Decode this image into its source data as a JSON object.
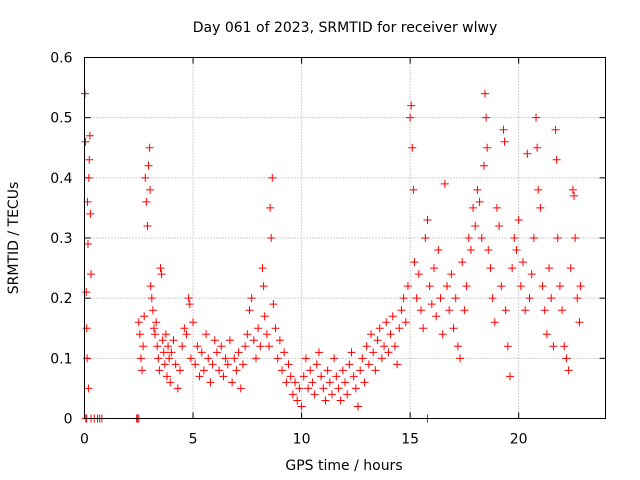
{
  "chart_data": {
    "type": "scatter",
    "title": "Day 061 of 2023, SRMTID for receiver wlwy",
    "xlabel": "GPS time / hours",
    "ylabel": "SRMTID / TECUs",
    "xlim": [
      0,
      24
    ],
    "ylim": [
      0,
      0.6
    ],
    "xticks": [
      0,
      5,
      10,
      15,
      20
    ],
    "xtick_labels": [
      "0",
      "5",
      "10",
      "15",
      "20"
    ],
    "yticks": [
      0,
      0.1,
      0.2,
      0.3,
      0.4,
      0.5,
      0.6
    ],
    "ytick_labels": [
      "0",
      "0.1",
      "0.2",
      "0.3",
      "0.4",
      "0.5",
      "0.6"
    ],
    "grid": true,
    "marker": "+",
    "series": [
      {
        "name": "SRMTID",
        "color": "#ff0000",
        "points": [
          [
            0.02,
            0.54
          ],
          [
            0.05,
            0.46
          ],
          [
            0.08,
            0.21
          ],
          [
            0.1,
            0.15
          ],
          [
            0.12,
            0.1
          ],
          [
            0.14,
            0.36
          ],
          [
            0.16,
            0.29
          ],
          [
            0.18,
            0.05
          ],
          [
            0.2,
            0.4
          ],
          [
            0.22,
            0.43
          ],
          [
            0.25,
            0.47
          ],
          [
            0.27,
            0.34
          ],
          [
            0.3,
            0.24
          ],
          [
            0.06,
            0.0
          ],
          [
            0.1,
            0.0
          ],
          [
            0.3,
            0.0
          ],
          [
            0.45,
            0.0
          ],
          [
            0.6,
            0.0
          ],
          [
            0.7,
            0.0
          ],
          [
            0.8,
            0.0
          ],
          [
            2.4,
            0.0
          ],
          [
            2.45,
            0.0
          ],
          [
            2.5,
            0.0
          ],
          [
            15.8,
            0.0
          ],
          [
            2.5,
            0.16
          ],
          [
            2.55,
            0.14
          ],
          [
            2.6,
            0.1
          ],
          [
            2.65,
            0.08
          ],
          [
            2.7,
            0.12
          ],
          [
            2.75,
            0.17
          ],
          [
            2.8,
            0.4
          ],
          [
            2.85,
            0.36
          ],
          [
            2.9,
            0.32
          ],
          [
            2.95,
            0.42
          ],
          [
            3.0,
            0.45
          ],
          [
            3.02,
            0.38
          ],
          [
            3.05,
            0.22
          ],
          [
            3.1,
            0.2
          ],
          [
            3.15,
            0.18
          ],
          [
            3.2,
            0.15
          ],
          [
            3.25,
            0.14
          ],
          [
            3.3,
            0.16
          ],
          [
            3.35,
            0.12
          ],
          [
            3.4,
            0.1
          ],
          [
            3.45,
            0.08
          ],
          [
            3.5,
            0.25
          ],
          [
            3.55,
            0.24
          ],
          [
            3.6,
            0.13
          ],
          [
            3.65,
            0.11
          ],
          [
            3.7,
            0.09
          ],
          [
            3.75,
            0.14
          ],
          [
            3.8,
            0.07
          ],
          [
            3.85,
            0.12
          ],
          [
            3.9,
            0.1
          ],
          [
            3.95,
            0.06
          ],
          [
            4.0,
            0.11
          ],
          [
            4.1,
            0.13
          ],
          [
            4.2,
            0.09
          ],
          [
            4.3,
            0.05
          ],
          [
            4.4,
            0.08
          ],
          [
            4.5,
            0.12
          ],
          [
            4.6,
            0.15
          ],
          [
            4.7,
            0.14
          ],
          [
            4.8,
            0.2
          ],
          [
            4.85,
            0.19
          ],
          [
            4.9,
            0.1
          ],
          [
            5.0,
            0.16
          ],
          [
            5.1,
            0.09
          ],
          [
            5.2,
            0.12
          ],
          [
            5.3,
            0.07
          ],
          [
            5.4,
            0.11
          ],
          [
            5.5,
            0.08
          ],
          [
            5.6,
            0.14
          ],
          [
            5.7,
            0.1
          ],
          [
            5.8,
            0.06
          ],
          [
            5.9,
            0.09
          ],
          [
            6.0,
            0.13
          ],
          [
            6.1,
            0.11
          ],
          [
            6.2,
            0.08
          ],
          [
            6.3,
            0.12
          ],
          [
            6.4,
            0.07
          ],
          [
            6.5,
            0.1
          ],
          [
            6.6,
            0.09
          ],
          [
            6.7,
            0.13
          ],
          [
            6.8,
            0.06
          ],
          [
            6.9,
            0.1
          ],
          [
            7.0,
            0.08
          ],
          [
            7.1,
            0.11
          ],
          [
            7.2,
            0.05
          ],
          [
            7.3,
            0.09
          ],
          [
            7.4,
            0.12
          ],
          [
            7.5,
            0.14
          ],
          [
            7.6,
            0.18
          ],
          [
            7.7,
            0.2
          ],
          [
            7.8,
            0.13
          ],
          [
            7.9,
            0.1
          ],
          [
            8.0,
            0.15
          ],
          [
            8.1,
            0.12
          ],
          [
            8.2,
            0.25
          ],
          [
            8.25,
            0.22
          ],
          [
            8.3,
            0.17
          ],
          [
            8.4,
            0.14
          ],
          [
            8.5,
            0.12
          ],
          [
            8.55,
            0.35
          ],
          [
            8.6,
            0.3
          ],
          [
            8.65,
            0.4
          ],
          [
            8.7,
            0.19
          ],
          [
            8.8,
            0.15
          ],
          [
            8.9,
            0.1
          ],
          [
            9.0,
            0.13
          ],
          [
            9.1,
            0.08
          ],
          [
            9.2,
            0.11
          ],
          [
            9.3,
            0.06
          ],
          [
            9.4,
            0.09
          ],
          [
            9.5,
            0.07
          ],
          [
            9.6,
            0.04
          ],
          [
            9.7,
            0.06
          ],
          [
            9.8,
            0.03
          ],
          [
            9.9,
            0.05
          ],
          [
            10.0,
            0.02
          ],
          [
            10.1,
            0.07
          ],
          [
            10.2,
            0.1
          ],
          [
            10.3,
            0.05
          ],
          [
            10.4,
            0.08
          ],
          [
            10.5,
            0.06
          ],
          [
            10.6,
            0.04
          ],
          [
            10.7,
            0.09
          ],
          [
            10.8,
            0.11
          ],
          [
            10.9,
            0.07
          ],
          [
            11.0,
            0.05
          ],
          [
            11.1,
            0.03
          ],
          [
            11.2,
            0.08
          ],
          [
            11.3,
            0.06
          ],
          [
            11.4,
            0.04
          ],
          [
            11.5,
            0.1
          ],
          [
            11.6,
            0.07
          ],
          [
            11.7,
            0.05
          ],
          [
            11.8,
            0.03
          ],
          [
            11.9,
            0.08
          ],
          [
            12.0,
            0.06
          ],
          [
            12.1,
            0.04
          ],
          [
            12.2,
            0.09
          ],
          [
            12.3,
            0.11
          ],
          [
            12.4,
            0.07
          ],
          [
            12.5,
            0.05
          ],
          [
            12.6,
            0.02
          ],
          [
            12.7,
            0.08
          ],
          [
            12.8,
            0.1
          ],
          [
            12.9,
            0.06
          ],
          [
            13.0,
            0.12
          ],
          [
            13.1,
            0.09
          ],
          [
            13.2,
            0.14
          ],
          [
            13.3,
            0.11
          ],
          [
            13.4,
            0.08
          ],
          [
            13.5,
            0.13
          ],
          [
            13.6,
            0.15
          ],
          [
            13.7,
            0.1
          ],
          [
            13.8,
            0.12
          ],
          [
            13.9,
            0.16
          ],
          [
            14.0,
            0.11
          ],
          [
            14.1,
            0.14
          ],
          [
            14.2,
            0.17
          ],
          [
            14.3,
            0.12
          ],
          [
            14.4,
            0.09
          ],
          [
            14.5,
            0.15
          ],
          [
            14.6,
            0.18
          ],
          [
            14.7,
            0.2
          ],
          [
            14.8,
            0.16
          ],
          [
            14.9,
            0.22
          ],
          [
            15.0,
            0.5
          ],
          [
            15.05,
            0.52
          ],
          [
            15.1,
            0.45
          ],
          [
            15.15,
            0.38
          ],
          [
            15.2,
            0.26
          ],
          [
            15.3,
            0.2
          ],
          [
            15.4,
            0.24
          ],
          [
            15.5,
            0.18
          ],
          [
            15.6,
            0.15
          ],
          [
            15.7,
            0.3
          ],
          [
            15.8,
            0.33
          ],
          [
            15.9,
            0.22
          ],
          [
            16.0,
            0.19
          ],
          [
            16.1,
            0.25
          ],
          [
            16.2,
            0.17
          ],
          [
            16.3,
            0.28
          ],
          [
            16.4,
            0.2
          ],
          [
            16.5,
            0.14
          ],
          [
            16.6,
            0.39
          ],
          [
            16.7,
            0.22
          ],
          [
            16.8,
            0.18
          ],
          [
            16.9,
            0.24
          ],
          [
            17.0,
            0.15
          ],
          [
            17.1,
            0.2
          ],
          [
            17.2,
            0.12
          ],
          [
            17.3,
            0.1
          ],
          [
            17.4,
            0.26
          ],
          [
            17.5,
            0.18
          ],
          [
            17.6,
            0.22
          ],
          [
            17.7,
            0.3
          ],
          [
            17.8,
            0.28
          ],
          [
            17.9,
            0.35
          ],
          [
            18.0,
            0.32
          ],
          [
            18.1,
            0.38
          ],
          [
            18.2,
            0.36
          ],
          [
            18.3,
            0.3
          ],
          [
            18.4,
            0.42
          ],
          [
            18.45,
            0.54
          ],
          [
            18.5,
            0.5
          ],
          [
            18.55,
            0.45
          ],
          [
            18.6,
            0.28
          ],
          [
            18.7,
            0.25
          ],
          [
            18.8,
            0.2
          ],
          [
            18.9,
            0.16
          ],
          [
            19.0,
            0.35
          ],
          [
            19.1,
            0.32
          ],
          [
            19.2,
            0.22
          ],
          [
            19.3,
            0.48
          ],
          [
            19.35,
            0.46
          ],
          [
            19.4,
            0.18
          ],
          [
            19.5,
            0.12
          ],
          [
            19.6,
            0.07
          ],
          [
            19.7,
            0.25
          ],
          [
            19.8,
            0.3
          ],
          [
            19.9,
            0.28
          ],
          [
            20.0,
            0.33
          ],
          [
            20.1,
            0.22
          ],
          [
            20.2,
            0.26
          ],
          [
            20.3,
            0.18
          ],
          [
            20.4,
            0.44
          ],
          [
            20.5,
            0.2
          ],
          [
            20.6,
            0.24
          ],
          [
            20.7,
            0.3
          ],
          [
            20.8,
            0.5
          ],
          [
            20.85,
            0.45
          ],
          [
            20.9,
            0.38
          ],
          [
            21.0,
            0.35
          ],
          [
            21.1,
            0.22
          ],
          [
            21.2,
            0.18
          ],
          [
            21.3,
            0.14
          ],
          [
            21.4,
            0.25
          ],
          [
            21.5,
            0.2
          ],
          [
            21.6,
            0.12
          ],
          [
            21.7,
            0.48
          ],
          [
            21.75,
            0.43
          ],
          [
            21.8,
            0.3
          ],
          [
            21.9,
            0.22
          ],
          [
            22.0,
            0.18
          ],
          [
            22.1,
            0.12
          ],
          [
            22.2,
            0.1
          ],
          [
            22.3,
            0.08
          ],
          [
            22.4,
            0.25
          ],
          [
            22.5,
            0.38
          ],
          [
            22.55,
            0.37
          ],
          [
            22.6,
            0.3
          ],
          [
            22.7,
            0.2
          ],
          [
            22.8,
            0.16
          ],
          [
            22.85,
            0.22
          ]
        ]
      }
    ]
  }
}
